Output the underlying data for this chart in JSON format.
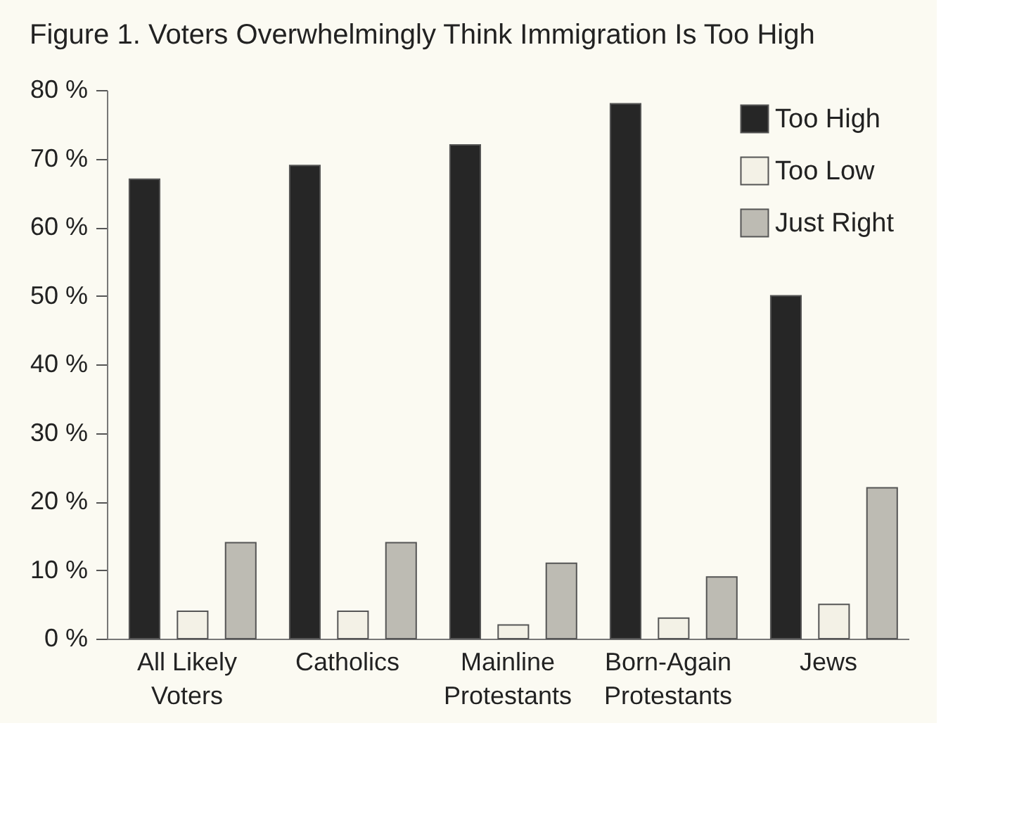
{
  "chart_data": {
    "type": "bar",
    "title": "Figure 1. Voters Overwhelmingly Think Immigration Is Too High",
    "categories": [
      "All Likely Voters",
      "Catholics",
      "Mainline Protestants",
      "Born-Again Protestants",
      "Jews"
    ],
    "series": [
      {
        "name": "Too High",
        "color": "#262626",
        "values": [
          67,
          69,
          72,
          78,
          50
        ]
      },
      {
        "name": "Too Low",
        "color": "#f3f1e6",
        "values": [
          4,
          4,
          2,
          3,
          5
        ]
      },
      {
        "name": "Just Right",
        "color": "#bdbbb3",
        "values": [
          14,
          14,
          11,
          9,
          22
        ]
      }
    ],
    "ylim": [
      0,
      80
    ],
    "yticks": [
      {
        "value": 0,
        "label": "0 %"
      },
      {
        "value": 10,
        "label": "10 %"
      },
      {
        "value": 20,
        "label": "20 %"
      },
      {
        "value": 30,
        "label": "30 %"
      },
      {
        "value": 40,
        "label": "40 %"
      },
      {
        "value": 50,
        "label": "50 %"
      },
      {
        "value": 60,
        "label": "60 %"
      },
      {
        "value": 70,
        "label": "70 %"
      },
      {
        "value": 80,
        "label": "80 %"
      }
    ],
    "grid": false,
    "legend": "top right"
  }
}
